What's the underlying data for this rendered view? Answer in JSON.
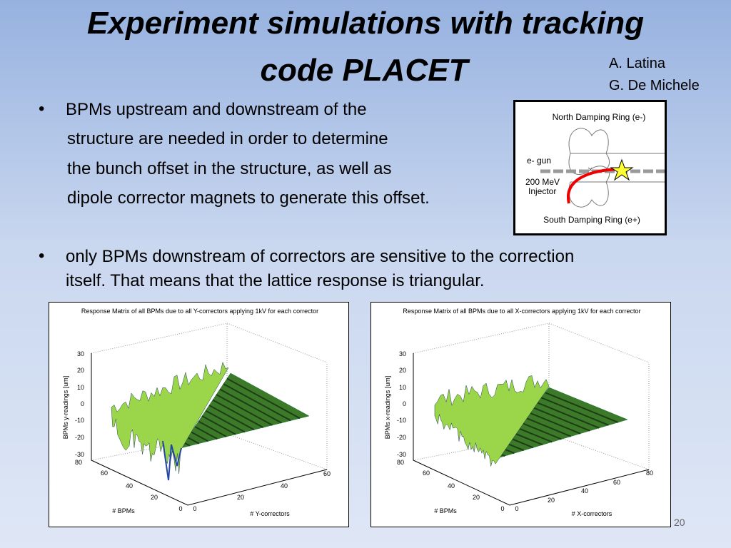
{
  "header": {
    "title_lines": [
      "Experiment simulations with tracking",
      "code PLACET"
    ],
    "authors": [
      "A. Latina",
      "G. De Michele"
    ]
  },
  "bullets": [
    {
      "lines": [
        "BPMs upstream and downstream of the",
        "structure are needed in order to determine",
        "the bunch offset in the structure, as well as",
        "dipole corrector magnets to generate this offset."
      ]
    },
    {
      "lines": [
        "only BPMs downstream of correctors are sensitive to the correction",
        "itself. That means that the lattice response is triangular."
      ]
    }
  ],
  "diagram": {
    "labels": [
      "North Damping Ring (e-)",
      "e- gun",
      "200 MeV",
      "Injector",
      "South Damping Ring (e+)"
    ]
  },
  "plots": [
    {
      "title": "Response Matrix of all BPMs due to all Y-correctors applying 1kV for each corrector",
      "zlabel": "BPMs y-readings [um]",
      "zticks": [
        "30",
        "20",
        "10",
        "0",
        "-10",
        "-20",
        "-30"
      ],
      "xlabel": "# BPMs",
      "xticks": [
        "80",
        "60",
        "40",
        "20",
        "0"
      ],
      "ylabel": "# Y-correctors",
      "yticks": [
        "0",
        "20",
        "40",
        "60"
      ]
    },
    {
      "title": "Response Matrix of all BPMs due to all X-correctors applying 1kV for each corrector",
      "zlabel": "BPMs x-readings [um]",
      "zticks": [
        "30",
        "20",
        "10",
        "0",
        "-10",
        "-20",
        "-30"
      ],
      "xlabel": "# BPMs",
      "xticks": [
        "80",
        "60",
        "40",
        "20",
        "0"
      ],
      "ylabel": "# X-correctors",
      "yticks": [
        "0",
        "20",
        "40",
        "60",
        "80"
      ]
    }
  ],
  "page_number": "20"
}
